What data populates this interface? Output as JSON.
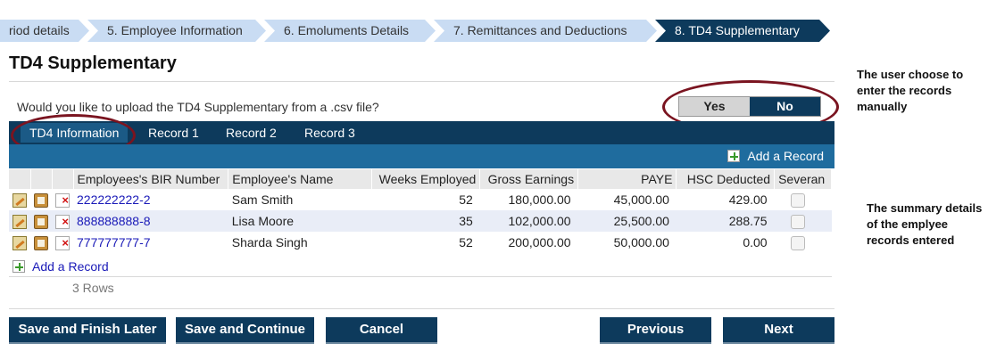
{
  "breadcrumb": [
    "riod details",
    "5. Employee Information",
    "6. Emoluments Details",
    "7. Remittances and Deductions",
    "8. TD4 Supplementary"
  ],
  "page_title": "TD4 Supplementary",
  "upload_question": "Would you like to upload the TD4 Supplementary from a .csv file?",
  "toggle": {
    "yes": "Yes",
    "no": "No",
    "selected": "No"
  },
  "tabs": [
    "TD4 Information",
    "Record 1",
    "Record 2",
    "Record 3"
  ],
  "add_record_label": "Add a Record",
  "table": {
    "headers": [
      "Employees's BIR Number",
      "Employee's Name",
      "Weeks Employed",
      "Gross Earnings",
      "PAYE",
      "HSC Deducted",
      "Severan"
    ],
    "rows": [
      {
        "bir": "222222222-2",
        "name": "Sam Smith",
        "weeks": "52",
        "gross": "180,000.00",
        "paye": "45,000.00",
        "hsc": "429.00"
      },
      {
        "bir": "888888888-8",
        "name": "Lisa Moore",
        "weeks": "35",
        "gross": "102,000.00",
        "paye": "25,500.00",
        "hsc": "288.75"
      },
      {
        "bir": "777777777-7",
        "name": "Sharda Singh",
        "weeks": "52",
        "gross": "200,000.00",
        "paye": "50,000.00",
        "hsc": "0.00"
      }
    ]
  },
  "row_count": "3 Rows",
  "buttons": {
    "save_finish": "Save and Finish Later",
    "save_continue": "Save and Continue",
    "cancel": "Cancel",
    "previous": "Previous",
    "next": "Next"
  },
  "annotations": {
    "toggle_note": "The user choose to enter the records manually",
    "summary_note": "The summary details of the emplyee records entered"
  },
  "colors": {
    "primary": "#0d3a5c",
    "subbar": "#1f6c9e",
    "crumb": "#c9dcf3",
    "oval": "#7a1420"
  }
}
